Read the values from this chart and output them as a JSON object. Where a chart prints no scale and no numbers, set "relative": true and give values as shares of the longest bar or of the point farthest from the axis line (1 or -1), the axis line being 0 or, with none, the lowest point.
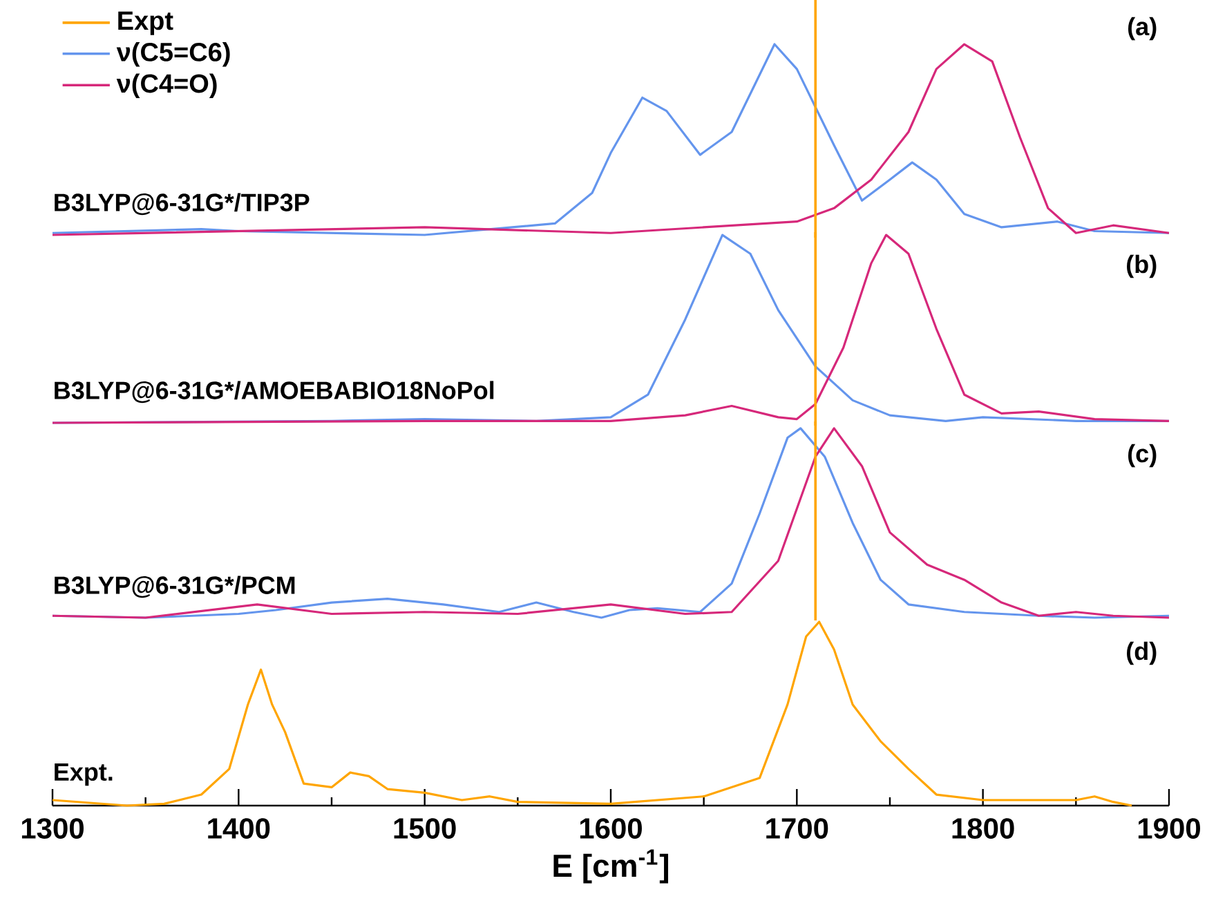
{
  "chart_data": [
    {
      "type": "line",
      "relative": true,
      "xlim": [
        1300,
        1900
      ],
      "tick_labels": false,
      "legend": "top left",
      "annotations": [
        "(a)",
        "B3LYP@6-31G*/TIP3P"
      ],
      "ref_lines": [
        {
          "axis": "x",
          "value": 1710,
          "color": "#ffa500"
        }
      ],
      "series": [
        {
          "name": "ν(C5=C6)",
          "color": "#6495ed",
          "x": [
            1300,
            1380,
            1400,
            1500,
            1570,
            1590,
            1600,
            1617,
            1630,
            1648,
            1665,
            1688,
            1700,
            1720,
            1735,
            1750,
            1762,
            1775,
            1790,
            1810,
            1840,
            1860,
            1900
          ],
          "values": [
            0.01,
            0.03,
            0.02,
            0,
            0.06,
            0.22,
            0.43,
            0.72,
            0.65,
            0.42,
            0.54,
            1.0,
            0.87,
            0.47,
            0.18,
            0.29,
            0.38,
            0.29,
            0.11,
            0.04,
            0.07,
            0.02,
            0.01
          ]
        },
        {
          "name": "ν(C4=O)",
          "color": "#d6287a",
          "x": [
            1300,
            1400,
            1500,
            1600,
            1650,
            1700,
            1720,
            1740,
            1760,
            1775,
            1790,
            1805,
            1820,
            1835,
            1850,
            1870,
            1900
          ],
          "values": [
            0,
            0.02,
            0.04,
            0.01,
            0.04,
            0.07,
            0.14,
            0.29,
            0.54,
            0.87,
            1.0,
            0.91,
            0.51,
            0.14,
            0.01,
            0.05,
            0.01
          ]
        }
      ]
    },
    {
      "type": "line",
      "relative": true,
      "xlim": [
        1300,
        1900
      ],
      "tick_labels": false,
      "annotations": [
        "(b)",
        "B3LYP@6-31G*/AMOEBABIO18NoPol"
      ],
      "ref_lines": [
        {
          "axis": "x",
          "value": 1710,
          "color": "#ffa500"
        }
      ],
      "series": [
        {
          "color": "#6495ed",
          "x": [
            1300,
            1450,
            1500,
            1560,
            1600,
            1620,
            1640,
            1660,
            1675,
            1690,
            1710,
            1730,
            1750,
            1780,
            1800,
            1850,
            1900
          ],
          "values": [
            0,
            0.01,
            0.02,
            0.01,
            0.03,
            0.15,
            0.55,
            1.0,
            0.9,
            0.6,
            0.3,
            0.12,
            0.04,
            0.01,
            0.03,
            0.01,
            0.01
          ]
        },
        {
          "color": "#d6287a",
          "x": [
            1300,
            1500,
            1600,
            1640,
            1665,
            1690,
            1700,
            1710,
            1725,
            1740,
            1748,
            1760,
            1775,
            1790,
            1810,
            1830,
            1860,
            1900
          ],
          "values": [
            0,
            0.01,
            0.01,
            0.04,
            0.09,
            0.03,
            0.02,
            0.1,
            0.4,
            0.85,
            1.0,
            0.9,
            0.5,
            0.15,
            0.05,
            0.06,
            0.02,
            0.01
          ]
        }
      ]
    },
    {
      "type": "line",
      "relative": true,
      "xlim": [
        1300,
        1900
      ],
      "tick_labels": false,
      "annotations": [
        "(c)",
        "B3LYP@6-31G*/PCM"
      ],
      "ref_lines": [
        {
          "axis": "x",
          "value": 1710,
          "color": "#ffa500"
        }
      ],
      "series": [
        {
          "color": "#6495ed",
          "x": [
            1300,
            1350,
            1400,
            1420,
            1450,
            1480,
            1510,
            1540,
            1560,
            1580,
            1595,
            1610,
            1625,
            1648,
            1665,
            1680,
            1695,
            1702,
            1715,
            1730,
            1745,
            1760,
            1790,
            1830,
            1860,
            1900
          ],
          "values": [
            0.01,
            0,
            0.02,
            0.04,
            0.08,
            0.1,
            0.07,
            0.03,
            0.08,
            0.03,
            0,
            0.04,
            0.05,
            0.03,
            0.18,
            0.55,
            0.95,
            1.0,
            0.85,
            0.5,
            0.2,
            0.07,
            0.03,
            0.01,
            0,
            0.01
          ]
        },
        {
          "color": "#d6287a",
          "x": [
            1300,
            1350,
            1410,
            1450,
            1500,
            1550,
            1600,
            1640,
            1665,
            1690,
            1710,
            1720,
            1735,
            1750,
            1770,
            1790,
            1810,
            1830,
            1850,
            1870,
            1900
          ],
          "values": [
            0.01,
            0,
            0.07,
            0.02,
            0.03,
            0.02,
            0.07,
            0.02,
            0.03,
            0.3,
            0.85,
            1.0,
            0.8,
            0.45,
            0.28,
            0.2,
            0.08,
            0.01,
            0.03,
            0.01,
            0
          ]
        }
      ]
    },
    {
      "type": "line",
      "relative": true,
      "xlim": [
        1300,
        1900
      ],
      "xticks": [
        1300,
        1400,
        1500,
        1600,
        1700,
        1800,
        1900
      ],
      "tick_labels": "x",
      "xlabel": "E [cm$^{-1}$]",
      "annotations": [
        "(d)",
        "Expt."
      ],
      "series": [
        {
          "name": "Expt",
          "color": "#ffa500",
          "x": [
            1300,
            1340,
            1360,
            1380,
            1395,
            1405,
            1412,
            1418,
            1425,
            1435,
            1450,
            1460,
            1470,
            1480,
            1500,
            1520,
            1535,
            1550,
            1600,
            1650,
            1680,
            1695,
            1705,
            1712,
            1720,
            1730,
            1745,
            1760,
            1775,
            1800,
            1850,
            1860,
            1870,
            1880
          ],
          "values": [
            0.03,
            0,
            0.01,
            0.06,
            0.2,
            0.55,
            0.74,
            0.55,
            0.4,
            0.12,
            0.1,
            0.18,
            0.16,
            0.09,
            0.07,
            0.03,
            0.05,
            0.02,
            0.01,
            0.05,
            0.15,
            0.55,
            0.92,
            1.0,
            0.85,
            0.55,
            0.35,
            0.2,
            0.06,
            0.03,
            0.03,
            0.05,
            0.02,
            0
          ]
        }
      ]
    }
  ]
}
